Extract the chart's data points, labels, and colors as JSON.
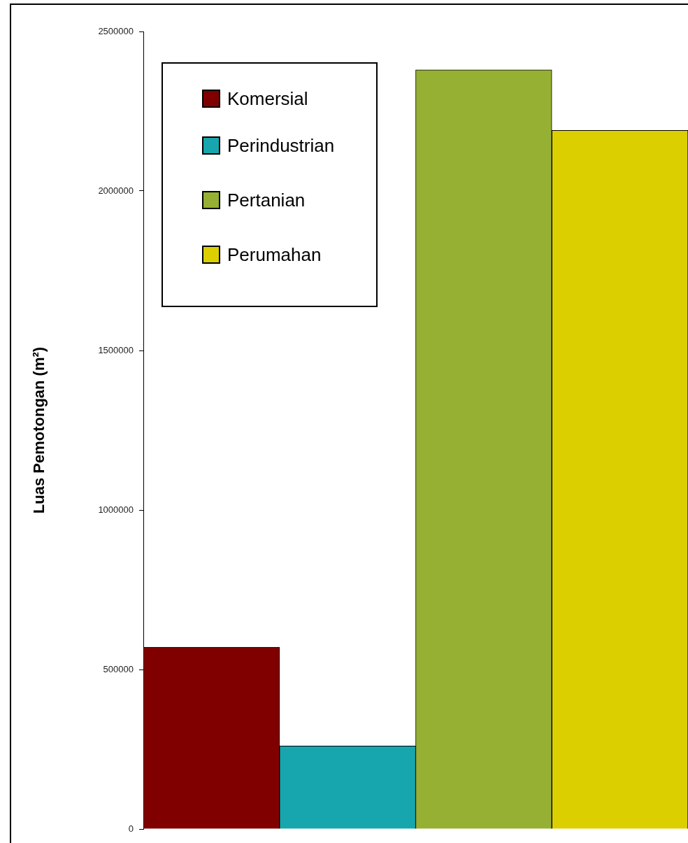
{
  "chart_data": {
    "type": "bar",
    "ylabel": "Luas Pemotongan (m²)",
    "categories": [
      null
    ],
    "series": [
      {
        "name": "Komersial",
        "color": "#800000",
        "values": [
          570000
        ]
      },
      {
        "name": "Perindustrian",
        "color": "#17a6ad",
        "values": [
          260000
        ]
      },
      {
        "name": "Pertanian",
        "color": "#95b033",
        "values": [
          2380000
        ]
      },
      {
        "name": "Perumahan",
        "color": "#dccf00",
        "values": [
          2190000
        ]
      }
    ],
    "ylim": [
      0,
      2500000
    ],
    "yticks": [
      0,
      500000,
      1000000,
      1500000,
      2000000,
      2500000
    ],
    "legend": "top left"
  }
}
